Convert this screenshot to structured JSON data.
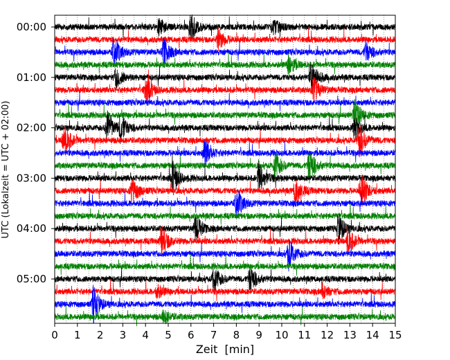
{
  "chart_data": {
    "type": "line",
    "title": "",
    "xlabel": "Zeit  [min]",
    "ylabel": "UTC (Lokalzeit = UTC + 02:00)",
    "xlim": [
      0,
      15
    ],
    "x_ticks": [
      0,
      1,
      2,
      3,
      4,
      5,
      6,
      7,
      8,
      9,
      10,
      11,
      12,
      13,
      14,
      15
    ],
    "y_ticks": [
      "00:00",
      "01:00",
      "02:00",
      "03:00",
      "04:00",
      "05:00"
    ],
    "trace_interval_min": 15,
    "grid": "vertical-dotted",
    "colors": [
      "#000000",
      "#ff0000",
      "#0000ff",
      "#008000"
    ],
    "traces": [
      {
        "start": "00:00",
        "events": [
          [
            4.6,
            0.5
          ],
          [
            6.0,
            0.8
          ],
          [
            9.6,
            0.5
          ]
        ]
      },
      {
        "start": "00:15",
        "events": [
          [
            7.2,
            0.6
          ]
        ]
      },
      {
        "start": "00:30",
        "events": [
          [
            2.6,
            0.9
          ],
          [
            4.8,
            0.8
          ],
          [
            13.7,
            0.6
          ]
        ]
      },
      {
        "start": "00:45",
        "events": [
          [
            10.3,
            0.6
          ]
        ]
      },
      {
        "start": "01:00",
        "events": [
          [
            2.7,
            0.6
          ],
          [
            11.3,
            0.9
          ]
        ]
      },
      {
        "start": "01:15",
        "events": [
          [
            4.0,
            0.8
          ],
          [
            11.4,
            0.7
          ]
        ]
      },
      {
        "start": "01:30",
        "events": []
      },
      {
        "start": "01:45",
        "events": [
          [
            13.2,
            0.9
          ]
        ]
      },
      {
        "start": "02:00",
        "events": [
          [
            2.3,
            1.0
          ],
          [
            2.9,
            0.8
          ],
          [
            13.2,
            0.6
          ]
        ]
      },
      {
        "start": "02:15",
        "events": [
          [
            0.4,
            1.0
          ],
          [
            13.4,
            1.0
          ]
        ]
      },
      {
        "start": "02:30",
        "events": [
          [
            6.6,
            0.8
          ]
        ]
      },
      {
        "start": "02:45",
        "events": [
          [
            9.7,
            0.8
          ],
          [
            11.2,
            1.0
          ]
        ]
      },
      {
        "start": "03:00",
        "events": [
          [
            5.2,
            0.9
          ],
          [
            9.0,
            0.9
          ]
        ]
      },
      {
        "start": "03:15",
        "events": [
          [
            3.4,
            0.8
          ],
          [
            10.6,
            0.8
          ],
          [
            13.5,
            1.0
          ]
        ]
      },
      {
        "start": "03:30",
        "events": [
          [
            8.0,
            0.9
          ]
        ]
      },
      {
        "start": "03:45",
        "events": []
      },
      {
        "start": "04:00",
        "events": [
          [
            6.2,
            0.8
          ],
          [
            12.5,
            0.9
          ]
        ]
      },
      {
        "start": "04:15",
        "events": [
          [
            4.7,
            0.9
          ],
          [
            12.9,
            0.8
          ]
        ]
      },
      {
        "start": "04:30",
        "events": [
          [
            10.3,
            0.9
          ]
        ]
      },
      {
        "start": "04:45",
        "events": []
      },
      {
        "start": "05:00",
        "events": [
          [
            7.0,
            0.8
          ],
          [
            8.6,
            0.8
          ]
        ]
      },
      {
        "start": "05:15",
        "events": [
          [
            4.5,
            0.4
          ],
          [
            11.8,
            0.4
          ]
        ]
      },
      {
        "start": "05:30",
        "events": [
          [
            1.7,
            1.0
          ]
        ]
      },
      {
        "start": "05:45",
        "events": [
          [
            4.8,
            0.4
          ]
        ]
      }
    ]
  }
}
